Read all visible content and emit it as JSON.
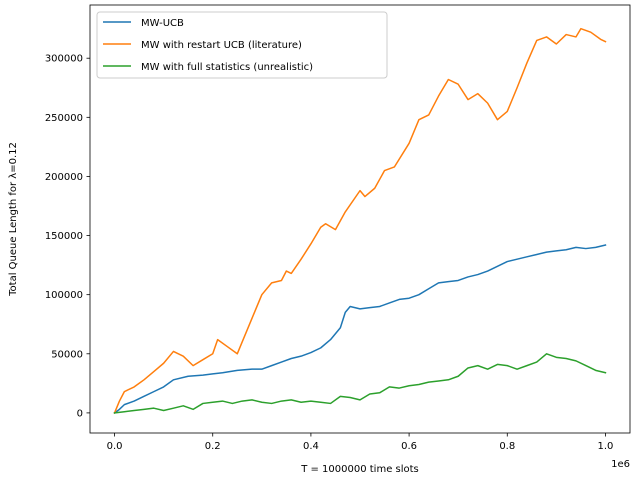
{
  "chart_data": {
    "type": "line",
    "title": "",
    "xlabel": "T = 1000000 time slots",
    "ylabel": "Total Queue Length for λ=0.12",
    "x_offset_label": "1e6",
    "xlim": [
      -0.05,
      1.05
    ],
    "ylim": [
      -17000,
      345000
    ],
    "xticks": [
      0.0,
      0.2,
      0.4,
      0.6,
      0.8,
      1.0
    ],
    "xtick_labels": [
      "0.0",
      "0.2",
      "0.4",
      "0.6",
      "0.8",
      "1.0"
    ],
    "yticks": [
      0,
      50000,
      100000,
      150000,
      200000,
      250000,
      300000
    ],
    "ytick_labels": [
      "0",
      "50000",
      "100000",
      "150000",
      "200000",
      "250000",
      "300000"
    ],
    "legend_position": "top-left",
    "series": [
      {
        "name": "MW-UCB",
        "color": "#1f77b4",
        "x": [
          0.0,
          0.01,
          0.02,
          0.04,
          0.06,
          0.08,
          0.1,
          0.12,
          0.15,
          0.18,
          0.2,
          0.22,
          0.25,
          0.28,
          0.3,
          0.32,
          0.34,
          0.36,
          0.38,
          0.4,
          0.42,
          0.44,
          0.46,
          0.47,
          0.48,
          0.5,
          0.52,
          0.54,
          0.56,
          0.58,
          0.6,
          0.62,
          0.64,
          0.66,
          0.68,
          0.7,
          0.72,
          0.74,
          0.76,
          0.78,
          0.8,
          0.82,
          0.84,
          0.86,
          0.88,
          0.9,
          0.92,
          0.94,
          0.96,
          0.98,
          1.0
        ],
        "y": [
          0,
          3000,
          7000,
          10000,
          14000,
          18000,
          22000,
          28000,
          31000,
          32000,
          33000,
          34000,
          36000,
          37000,
          37000,
          40000,
          43000,
          46000,
          48000,
          51000,
          55000,
          62000,
          72000,
          85000,
          90000,
          88000,
          89000,
          90000,
          93000,
          96000,
          97000,
          100000,
          105000,
          110000,
          111000,
          112000,
          115000,
          117000,
          120000,
          124000,
          128000,
          130000,
          132000,
          134000,
          136000,
          137000,
          138000,
          140000,
          139000,
          140000,
          142000
        ]
      },
      {
        "name": "MW with restart UCB (literature)",
        "color": "#ff7f0e",
        "x": [
          0.0,
          0.01,
          0.02,
          0.04,
          0.06,
          0.08,
          0.1,
          0.12,
          0.14,
          0.16,
          0.18,
          0.2,
          0.21,
          0.23,
          0.25,
          0.26,
          0.28,
          0.3,
          0.32,
          0.34,
          0.35,
          0.36,
          0.38,
          0.4,
          0.42,
          0.43,
          0.45,
          0.47,
          0.5,
          0.51,
          0.53,
          0.55,
          0.57,
          0.6,
          0.62,
          0.64,
          0.66,
          0.68,
          0.7,
          0.72,
          0.74,
          0.76,
          0.78,
          0.8,
          0.82,
          0.84,
          0.86,
          0.88,
          0.9,
          0.92,
          0.94,
          0.95,
          0.97,
          0.99,
          1.0
        ],
        "y": [
          0,
          10000,
          18000,
          22000,
          28000,
          35000,
          42000,
          52000,
          48000,
          40000,
          45000,
          50000,
          62000,
          56000,
          50000,
          60000,
          80000,
          100000,
          110000,
          112000,
          120000,
          118000,
          130000,
          143000,
          157000,
          160000,
          155000,
          170000,
          188000,
          183000,
          190000,
          205000,
          208000,
          228000,
          248000,
          252000,
          268000,
          282000,
          278000,
          265000,
          270000,
          262000,
          248000,
          255000,
          275000,
          296000,
          315000,
          318000,
          312000,
          320000,
          318000,
          325000,
          322000,
          316000,
          314000
        ]
      },
      {
        "name": "MW with full statistics (unrealistic)",
        "color": "#2ca02c",
        "x": [
          0.0,
          0.02,
          0.04,
          0.06,
          0.08,
          0.1,
          0.12,
          0.14,
          0.16,
          0.18,
          0.2,
          0.22,
          0.24,
          0.26,
          0.28,
          0.3,
          0.32,
          0.34,
          0.36,
          0.38,
          0.4,
          0.42,
          0.44,
          0.46,
          0.48,
          0.5,
          0.52,
          0.54,
          0.56,
          0.58,
          0.6,
          0.62,
          0.64,
          0.66,
          0.68,
          0.7,
          0.72,
          0.74,
          0.76,
          0.78,
          0.8,
          0.82,
          0.84,
          0.86,
          0.88,
          0.9,
          0.92,
          0.94,
          0.96,
          0.98,
          1.0
        ],
        "y": [
          0,
          1000,
          2000,
          3000,
          4000,
          2000,
          4000,
          6000,
          3000,
          8000,
          9000,
          10000,
          8000,
          10000,
          11000,
          9000,
          8000,
          10000,
          11000,
          9000,
          10000,
          9000,
          8000,
          14000,
          13000,
          11000,
          16000,
          17000,
          22000,
          21000,
          23000,
          24000,
          26000,
          27000,
          28000,
          31000,
          38000,
          40000,
          37000,
          41000,
          40000,
          37000,
          40000,
          43000,
          50000,
          47000,
          46000,
          44000,
          40000,
          36000,
          34000
        ]
      }
    ]
  }
}
